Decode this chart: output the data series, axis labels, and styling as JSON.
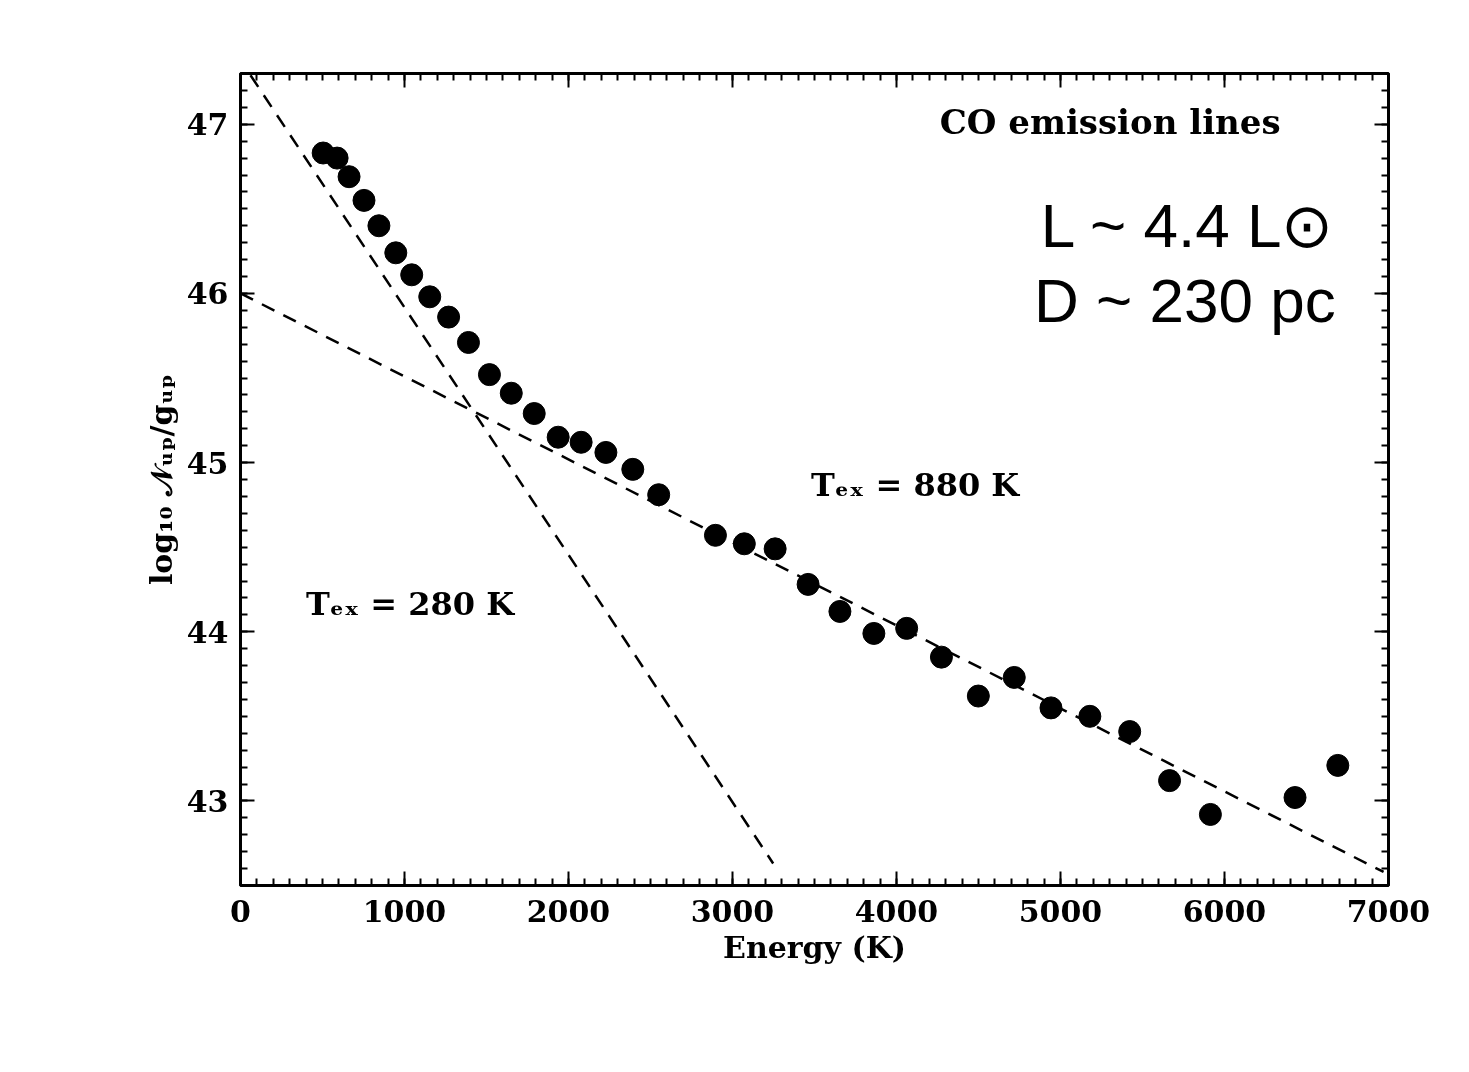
{
  "chart_data": {
    "type": "scatter",
    "xlabel": "Energy (K)",
    "ylabel": "log₁₀ 𝒩ᵤₚ/gᵤₚ",
    "xlim": [
      0,
      7000
    ],
    "ylim": [
      42.5,
      47.3
    ],
    "xticks": [
      0,
      1000,
      2000,
      3000,
      4000,
      5000,
      6000,
      7000
    ],
    "yticks": [
      43,
      44,
      45,
      46,
      47
    ],
    "grid": false,
    "marker": "circle",
    "series": [
      {
        "color": "#000000",
        "x": [
          504,
          589,
          662,
          753,
          844,
          947,
          1044,
          1154,
          1269,
          1390,
          1518,
          1651,
          1791,
          1937,
          2077,
          2228,
          2392,
          2550,
          2896,
          3072,
          3260,
          3461,
          3655,
          3862,
          4062,
          4274,
          4499,
          4718,
          4942,
          5179,
          5422,
          5665,
          5914,
          6430,
          6691
        ],
        "values": [
          46.83,
          46.8,
          46.69,
          46.55,
          46.4,
          46.24,
          46.11,
          45.98,
          45.86,
          45.71,
          45.52,
          45.41,
          45.29,
          45.15,
          45.12,
          45.06,
          44.96,
          44.81,
          44.57,
          44.52,
          44.49,
          44.28,
          44.12,
          43.99,
          44.02,
          43.85,
          43.62,
          43.73,
          43.55,
          43.5,
          43.41,
          43.12,
          42.92,
          43.02,
          43.21
        ]
      },
      {
        "type": "line",
        "color": "#000000",
        "line_style": "dashed",
        "marker": "none",
        "x": [
          61,
          3248
        ],
        "values": [
          47.29,
          42.63
        ]
      },
      {
        "type": "line",
        "color": "#000000",
        "line_style": "dashed",
        "marker": "none",
        "x": [
          0,
          6970
        ],
        "values": [
          46.0,
          42.58
        ]
      }
    ],
    "annotations": [
      "CO emission lines",
      "L ~ 4.4 L⊙",
      "D ~ 230 pc",
      "Tₑₓ = 880 K",
      "Tₑₓ = 280 K"
    ]
  }
}
